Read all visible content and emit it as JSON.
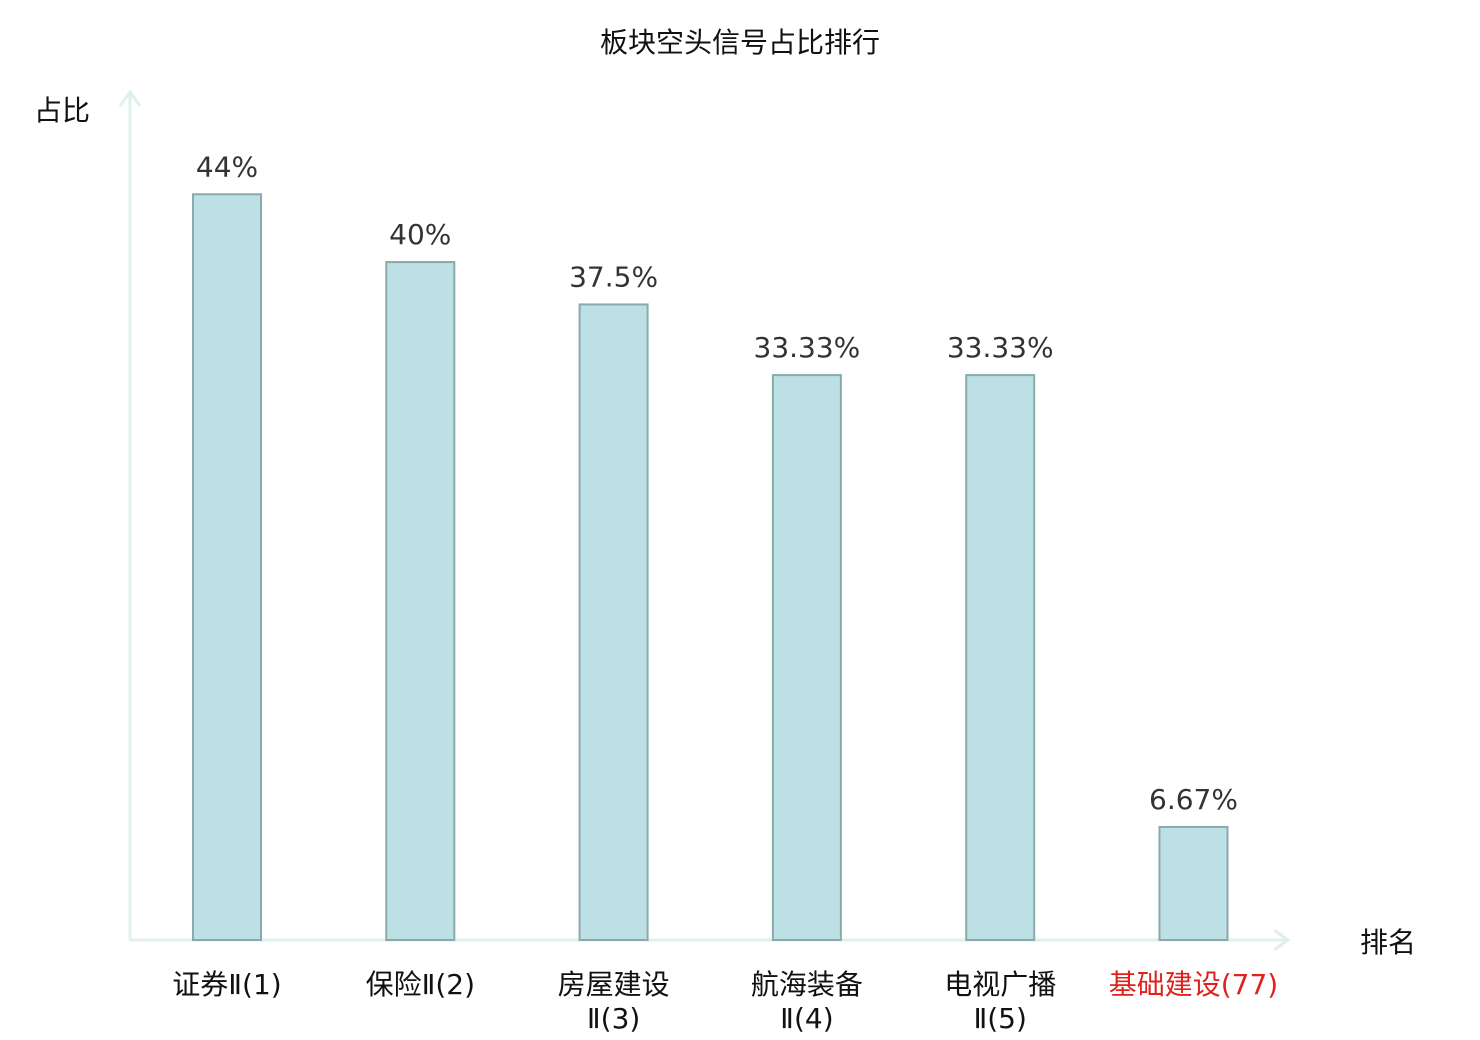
{
  "chart_data": {
    "type": "bar",
    "title": "板块空头信号占比排行",
    "ylabel": "占比",
    "xlabel": "排名",
    "ylim": [
      0,
      48.5
    ],
    "categories": [
      [
        "证券Ⅱ(1)"
      ],
      [
        "保险Ⅱ(2)"
      ],
      [
        "房屋建设",
        "Ⅱ(3)"
      ],
      [
        "航海装备",
        "Ⅱ(4)"
      ],
      [
        "电视广播",
        "Ⅱ(5)"
      ],
      [
        "基础建设(77)"
      ]
    ],
    "values": [
      44,
      40,
      37.5,
      33.33,
      33.33,
      6.67
    ],
    "value_labels": [
      "44%",
      "40%",
      "37.5%",
      "33.33%",
      "33.33%",
      "6.67%"
    ],
    "highlight_index": 5,
    "grid": false,
    "colors": {
      "bar_fill": "#bce0e3",
      "bar_stroke": "#8aa9ac",
      "axis": "#dff0ee",
      "highlight_label": "#e0211c",
      "label": "#111111",
      "value_label": "#333333"
    }
  }
}
